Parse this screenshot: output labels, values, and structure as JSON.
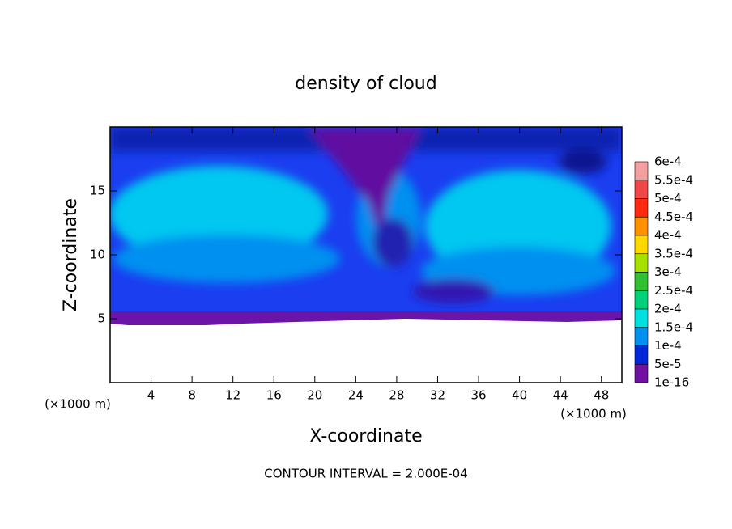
{
  "chart_data": {
    "type": "contour",
    "title": "density of cloud",
    "x_label": "X-coordinate",
    "y_label": "Z-coordinate",
    "x_unit_left": "(×1000 m)",
    "x_unit_right": "(×1000 m)",
    "footer": "CONTOUR INTERVAL = 2.000E-04",
    "xlim": [
      0,
      50
    ],
    "xticks": [
      4,
      8,
      12,
      16,
      20,
      24,
      28,
      32,
      36,
      40,
      44,
      48
    ],
    "ylim": [
      0,
      20
    ],
    "yticks": [
      5,
      10,
      15
    ],
    "colorbar": {
      "levels": [
        {
          "value": 0.0006,
          "label": "6e-4"
        },
        {
          "value": 0.00055,
          "label": "5.5e-4"
        },
        {
          "value": 0.0005,
          "label": "5e-4"
        },
        {
          "value": 0.00045,
          "label": "4.5e-4"
        },
        {
          "value": 0.0004,
          "label": "4e-4"
        },
        {
          "value": 0.00035,
          "label": "3.5e-4"
        },
        {
          "value": 0.0003,
          "label": "3e-4"
        },
        {
          "value": 0.00025,
          "label": "2.5e-4"
        },
        {
          "value": 0.0002,
          "label": "2e-4"
        },
        {
          "value": 0.00015,
          "label": "1.5e-4"
        },
        {
          "value": 0.0001,
          "label": "1e-4"
        },
        {
          "value": 5e-05,
          "label": "5e-5"
        },
        {
          "value": 1e-16,
          "label": "1e-16"
        }
      ],
      "colors": [
        "#f4a0a0",
        "#f04848",
        "#ff2a10",
        "#ff9000",
        "#ffd800",
        "#a8e000",
        "#30c030",
        "#00d078",
        "#00e0e0",
        "#0090f0",
        "#0028d8",
        "#7010a0"
      ]
    }
  }
}
